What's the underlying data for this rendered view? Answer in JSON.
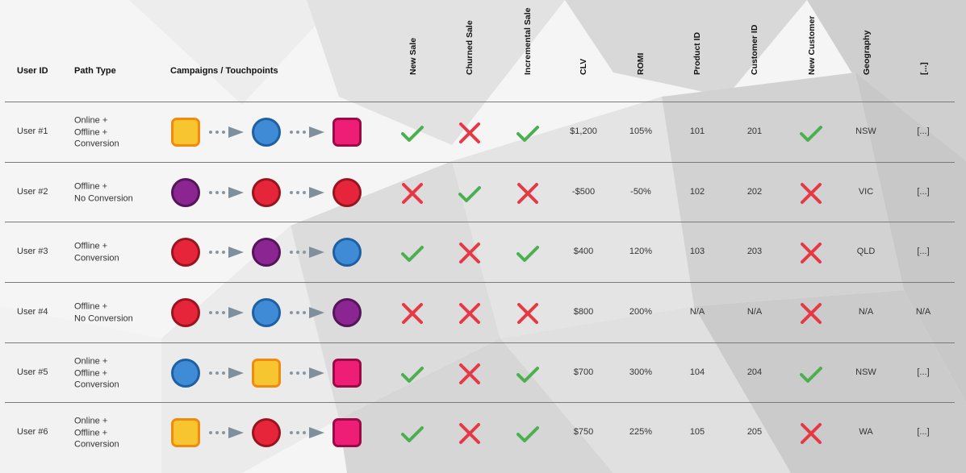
{
  "headers": {
    "user_id": "User ID",
    "path_type": "Path Type",
    "campaigns": "Campaigns / Touchpoints",
    "new_sale": "New Sale",
    "churned_sale": "Churned Sale",
    "incremental_sale": "Incremental Sale",
    "clv": "CLV",
    "romi": "ROMI",
    "product_id": "Product ID",
    "customer_id": "Customer ID",
    "new_customer": "New Customer",
    "geography": "Geography",
    "more": "[...]"
  },
  "colors": {
    "check": "#4caf50",
    "cross": "#e53945",
    "orange_fill": "#f7c530",
    "orange_border": "#f28a0e",
    "blue_fill": "#3f8bd6",
    "blue_border": "#1f5fa3",
    "pink_fill": "#ee1e77",
    "pink_border": "#9a0a46",
    "purple_fill": "#8b2592",
    "purple_border": "#541559",
    "red_fill": "#e6253a",
    "red_border": "#98141f"
  },
  "rows": [
    {
      "user": "User #1",
      "path": [
        "Online +",
        "Offline +",
        "Conversion"
      ],
      "touchpoints": [
        [
          "square",
          "orange"
        ],
        [
          "circle",
          "blue"
        ],
        [
          "square",
          "pink"
        ]
      ],
      "new_sale": true,
      "churned_sale": false,
      "incremental_sale": true,
      "clv": "$1,200",
      "romi": "105%",
      "product_id": "101",
      "customer_id": "201",
      "new_customer": true,
      "geography": "NSW",
      "more": "[...]"
    },
    {
      "user": "User #2",
      "path": [
        "Offline +",
        "No Conversion"
      ],
      "touchpoints": [
        [
          "circle",
          "purple"
        ],
        [
          "circle",
          "red"
        ],
        [
          "circle",
          "red"
        ]
      ],
      "new_sale": false,
      "churned_sale": true,
      "incremental_sale": false,
      "clv": "-$500",
      "romi": "-50%",
      "product_id": "102",
      "customer_id": "202",
      "new_customer": false,
      "geography": "VIC",
      "more": "[...]"
    },
    {
      "user": "User #3",
      "path": [
        "Offline +",
        "Conversion"
      ],
      "touchpoints": [
        [
          "circle",
          "red"
        ],
        [
          "circle",
          "purple"
        ],
        [
          "circle",
          "blue"
        ]
      ],
      "new_sale": true,
      "churned_sale": false,
      "incremental_sale": true,
      "clv": "$400",
      "romi": "120%",
      "product_id": "103",
      "customer_id": "203",
      "new_customer": false,
      "geography": "QLD",
      "more": "[...]"
    },
    {
      "user": "User #4",
      "path": [
        "Offline +",
        "No Conversion"
      ],
      "touchpoints": [
        [
          "circle",
          "red"
        ],
        [
          "circle",
          "blue"
        ],
        [
          "circle",
          "purple"
        ]
      ],
      "new_sale": false,
      "churned_sale": false,
      "incremental_sale": false,
      "clv": "$800",
      "romi": "200%",
      "product_id": "N/A",
      "customer_id": "N/A",
      "new_customer": false,
      "geography": "N/A",
      "more": "N/A"
    },
    {
      "user": "User #5",
      "path": [
        "Online +",
        "Offline +",
        "Conversion"
      ],
      "touchpoints": [
        [
          "circle",
          "blue"
        ],
        [
          "square",
          "orange"
        ],
        [
          "square",
          "pink"
        ]
      ],
      "new_sale": true,
      "churned_sale": false,
      "incremental_sale": true,
      "clv": "$700",
      "romi": "300%",
      "product_id": "104",
      "customer_id": "204",
      "new_customer": true,
      "geography": "NSW",
      "more": "[...]"
    },
    {
      "user": "User #6",
      "path": [
        "Online +",
        "Offline +",
        "Conversion"
      ],
      "touchpoints": [
        [
          "square",
          "orange"
        ],
        [
          "circle",
          "red"
        ],
        [
          "square",
          "pink"
        ]
      ],
      "new_sale": true,
      "churned_sale": false,
      "incremental_sale": true,
      "clv": "$750",
      "romi": "225%",
      "product_id": "105",
      "customer_id": "205",
      "new_customer": false,
      "geography": "WA",
      "more": "[...]"
    }
  ]
}
